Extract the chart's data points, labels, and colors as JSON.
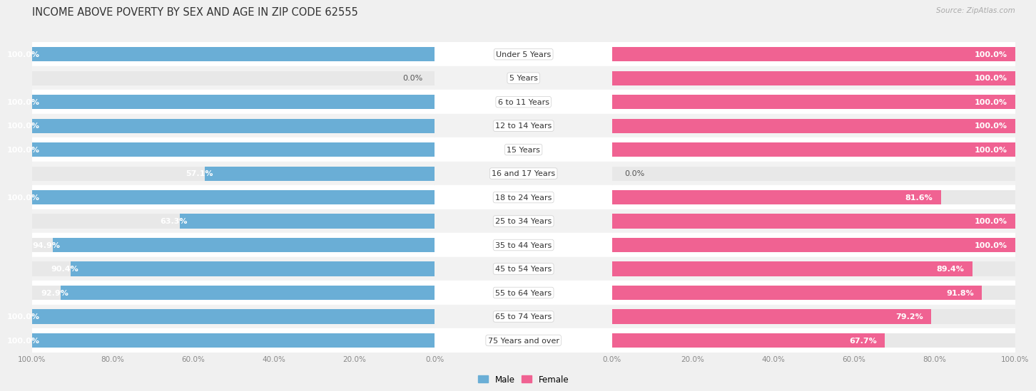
{
  "title": "INCOME ABOVE POVERTY BY SEX AND AGE IN ZIP CODE 62555",
  "source": "Source: ZipAtlas.com",
  "categories": [
    "Under 5 Years",
    "5 Years",
    "6 to 11 Years",
    "12 to 14 Years",
    "15 Years",
    "16 and 17 Years",
    "18 to 24 Years",
    "25 to 34 Years",
    "35 to 44 Years",
    "45 to 54 Years",
    "55 to 64 Years",
    "65 to 74 Years",
    "75 Years and over"
  ],
  "male": [
    100.0,
    0.0,
    100.0,
    100.0,
    100.0,
    57.1,
    100.0,
    63.3,
    94.9,
    90.4,
    92.9,
    100.0,
    100.0
  ],
  "female": [
    100.0,
    100.0,
    100.0,
    100.0,
    100.0,
    0.0,
    81.6,
    100.0,
    100.0,
    89.4,
    91.8,
    79.2,
    67.7
  ],
  "male_color": "#6aaed6",
  "female_color": "#f06292",
  "male_label": "Male",
  "female_label": "Female",
  "bg_color": "#f0f0f0",
  "bar_bg_color": "#e8e8e8",
  "row_bg_even": "#f7f7f7",
  "row_bg_odd": "#eeeeee",
  "title_fontsize": 10.5,
  "label_fontsize": 8.0,
  "value_fontsize": 8.0,
  "tick_fontsize": 7.5,
  "bar_height": 0.6,
  "xlim": 100
}
